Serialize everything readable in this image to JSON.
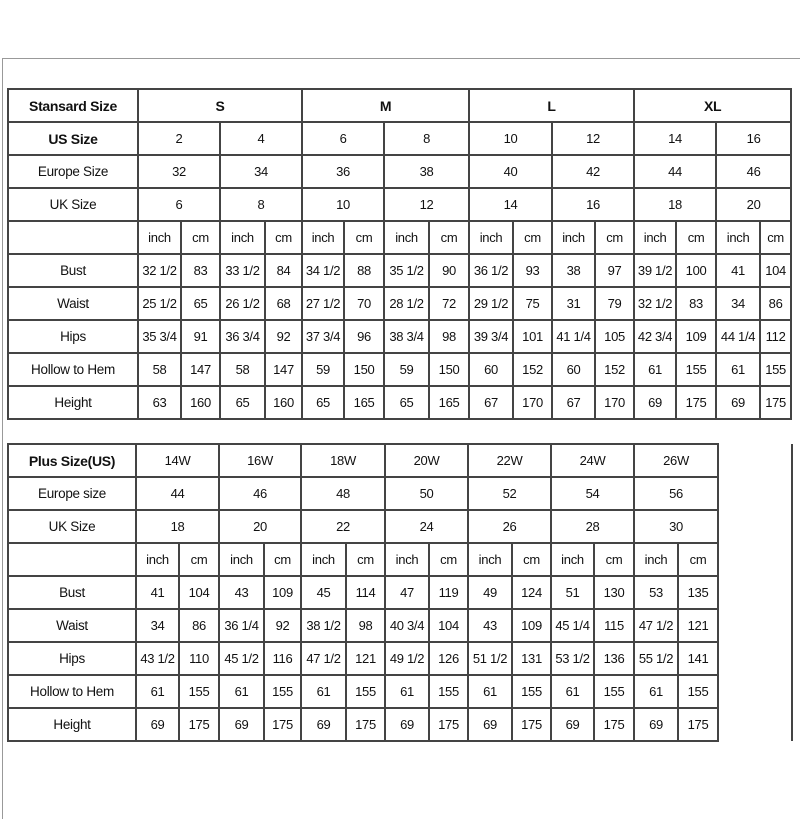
{
  "standard": {
    "header_label": "Stansard Size",
    "groups": [
      "S",
      "M",
      "L",
      "XL"
    ],
    "us_label": "US Size",
    "us": [
      "2",
      "4",
      "6",
      "8",
      "10",
      "12",
      "14",
      "16"
    ],
    "europe_label": "Europe Size",
    "europe": [
      "32",
      "34",
      "36",
      "38",
      "40",
      "42",
      "44",
      "46"
    ],
    "uk_label": "UK Size",
    "uk": [
      "6",
      "8",
      "10",
      "12",
      "14",
      "16",
      "18",
      "20"
    ],
    "unit_inch": "inch",
    "unit_cm": "cm",
    "rows": [
      {
        "label": "Bust",
        "values": [
          "32 1/2",
          "83",
          "33 1/2",
          "84",
          "34 1/2",
          "88",
          "35 1/2",
          "90",
          "36 1/2",
          "93",
          "38",
          "97",
          "39 1/2",
          "100",
          "41",
          "104"
        ]
      },
      {
        "label": "Waist",
        "values": [
          "25 1/2",
          "65",
          "26 1/2",
          "68",
          "27 1/2",
          "70",
          "28 1/2",
          "72",
          "29 1/2",
          "75",
          "31",
          "79",
          "32 1/2",
          "83",
          "34",
          "86"
        ]
      },
      {
        "label": "Hips",
        "values": [
          "35 3/4",
          "91",
          "36 3/4",
          "92",
          "37 3/4",
          "96",
          "38 3/4",
          "98",
          "39 3/4",
          "101",
          "41 1/4",
          "105",
          "42 3/4",
          "109",
          "44 1/4",
          "112"
        ]
      },
      {
        "label": "Hollow to Hem",
        "values": [
          "58",
          "147",
          "58",
          "147",
          "59",
          "150",
          "59",
          "150",
          "60",
          "152",
          "60",
          "152",
          "61",
          "155",
          "61",
          "155"
        ]
      },
      {
        "label": "Height",
        "values": [
          "63",
          "160",
          "65",
          "160",
          "65",
          "165",
          "65",
          "165",
          "67",
          "170",
          "67",
          "170",
          "69",
          "175",
          "69",
          "175"
        ]
      }
    ]
  },
  "plus": {
    "header_label": "Plus Size(US)",
    "sizes": [
      "14W",
      "16W",
      "18W",
      "20W",
      "22W",
      "24W",
      "26W"
    ],
    "europe_label": "Europe size",
    "europe": [
      "44",
      "46",
      "48",
      "50",
      "52",
      "54",
      "56"
    ],
    "uk_label": "UK Size",
    "uk": [
      "18",
      "20",
      "22",
      "24",
      "26",
      "28",
      "30"
    ],
    "unit_inch": "inch",
    "unit_cm": "cm",
    "rows": [
      {
        "label": "Bust",
        "values": [
          "41",
          "104",
          "43",
          "109",
          "45",
          "114",
          "47",
          "119",
          "49",
          "124",
          "51",
          "130",
          "53",
          "135"
        ]
      },
      {
        "label": "Waist",
        "values": [
          "34",
          "86",
          "36 1/4",
          "92",
          "38 1/2",
          "98",
          "40 3/4",
          "104",
          "43",
          "109",
          "45 1/4",
          "115",
          "47 1/2",
          "121"
        ]
      },
      {
        "label": "Hips",
        "values": [
          "43 1/2",
          "110",
          "45 1/2",
          "116",
          "47 1/2",
          "121",
          "49 1/2",
          "126",
          "51 1/2",
          "131",
          "53 1/2",
          "136",
          "55 1/2",
          "141"
        ]
      },
      {
        "label": "Hollow to Hem",
        "values": [
          "61",
          "155",
          "61",
          "155",
          "61",
          "155",
          "61",
          "155",
          "61",
          "155",
          "61",
          "155",
          "61",
          "155"
        ]
      },
      {
        "label": "Height",
        "values": [
          "69",
          "175",
          "69",
          "175",
          "69",
          "175",
          "69",
          "175",
          "69",
          "175",
          "69",
          "175",
          "69",
          "175"
        ]
      }
    ]
  }
}
